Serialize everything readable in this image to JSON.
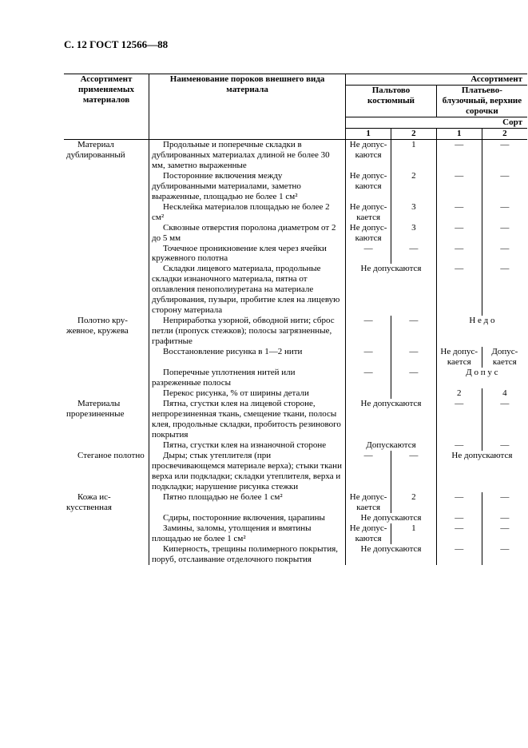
{
  "header": "С. 12 ГОСТ 12566—88",
  "thead": {
    "col1": "Ассортимент применяемых материалов",
    "col2": "Наименование пороков внешнего вида материала",
    "group_top": "Ассортимент",
    "group1": "Пальтово костюмный",
    "group2": "Платьево-блузочный, верхние сорочки",
    "sort": "Сорт",
    "n1": "1",
    "n2": "2"
  },
  "rows": [
    {
      "mat": "Материал дублирован­ный",
      "def": "Продольные и поперечные складки в дублированных ма­териалах длиной не более 30 мм, заметно выраженные",
      "c1": "Не допус­каются",
      "c2": "1",
      "c3": "—",
      "c4": "—"
    },
    {
      "mat": "",
      "def": "Посторонние включения между дублированными материалами, заметно выраженные, площадью не более 1 см²",
      "c1": "Не допус­каются",
      "c2": "2",
      "c3": "—",
      "c4": "—"
    },
    {
      "mat": "",
      "def": "Несклейка материалов площадью не более 2 см²",
      "c1": "Не допус­кается",
      "c2": "3",
      "c3": "—",
      "c4": "—"
    },
    {
      "mat": "",
      "def": "Сквозные отверстия поро­лона диаметром от 2 до 5 мм",
      "c1": "Не допус­каются",
      "c2": "3",
      "c3": "—",
      "c4": "—"
    },
    {
      "mat": "",
      "def": "Точечное проникновение клея через ячейки кружевного полотна",
      "c1": "—",
      "c2": "—",
      "c3": "—",
      "c4": "—"
    },
    {
      "mat": "",
      "def": "Складки лицевого материала, продольные складки изнаночного материала, пятна от оплавления пенопо­лиуретана на материале дублирования, пузыри, пробитие клея на лицевую сторону материала",
      "c12": "Не допускаются",
      "c3": "—",
      "c4": "—"
    },
    {
      "mat": "Полотно кру­жевное, кружева",
      "def": "Неприработка узорной, обводной нити; сброс петли (пропуск стежков); полосы загрязненные, графитные",
      "c1": "—",
      "c2": "—",
      "c34": "Н е  д о"
    },
    {
      "mat": "",
      "def": "Восстановление рисунка в 1—2 нити",
      "c1": "—",
      "c2": "—",
      "c3": "Не допус­кается",
      "c4": "Допус­кается"
    },
    {
      "mat": "",
      "def": "Поперечные уплотнения нитей или разреженные полосы",
      "c1": "—",
      "c2": "—",
      "c34": "Д о п у с"
    },
    {
      "mat": "",
      "def": "Перекос рисунка, % от ширины детали",
      "c1": "",
      "c2": "",
      "c3": "2",
      "c4": "4"
    },
    {
      "mat": "Материалы прорезинен­ные",
      "def": "Пятна, сгустки клея на лицевой стороне, непрорезиненная ткань, смещение ткани, полосы клея, продольные складки, пробитость резинового покрытия",
      "c12": "Не допускаются",
      "c3": "—",
      "c4": "—"
    },
    {
      "mat": "",
      "def": "Пятна, сгустки клея на из­наночной стороне",
      "c12": "Допускаются",
      "c3": "—",
      "c4": "—"
    },
    {
      "mat": "Стеганое полотно",
      "def": "Дыры; стык утеплителя (при просвечивающемся материале верха); стыки ткани верха или подкладки; склад­ки утеплителя, верха и подкладки; нарушение рисунка стежки",
      "c1": "—",
      "c2": "—",
      "c34": "Не допускаются"
    },
    {
      "mat": "Кожа ис­кусственная",
      "def": "Пятно площадью не более 1 см²",
      "c1": "Не допус­кается",
      "c2": "2",
      "c3": "—",
      "c4": "—"
    },
    {
      "mat": "",
      "def": "Сдиры, посторонние включения, царапины",
      "c12": "Не допускаются",
      "c3": "—",
      "c4": "—"
    },
    {
      "mat": "",
      "def": "Замины, заломы, утолщения и вмятины площадью не более 1 см²",
      "c1": "Не допус­каются",
      "c2": "1",
      "c3": "—",
      "c4": "—"
    },
    {
      "mat": "",
      "def": "Киперность, трещины полимерного покрытия, поруб, отслаивание отделочного покрытия",
      "c12": "Не допускаются",
      "c3": "—",
      "c4": "—"
    }
  ]
}
